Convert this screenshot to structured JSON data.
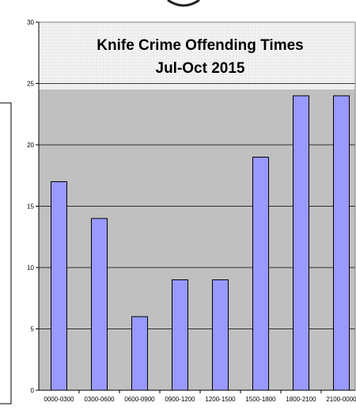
{
  "chart_data": {
    "type": "bar",
    "title": "Knife Crime Offending Times",
    "subtitle": "Jul-Oct 2015",
    "xlabel": "",
    "ylabel": "",
    "categories": [
      "0000-0300",
      "0300-0600",
      "0600-0900",
      "0900-1200",
      "1200-1500",
      "1500-1800",
      "1800-2100",
      "2100-0000"
    ],
    "values": [
      17,
      14,
      6,
      9,
      9,
      19,
      24,
      24
    ],
    "ylim": [
      0,
      30
    ],
    "yticks": [
      "0",
      "5",
      "10",
      "15",
      "20",
      "25",
      "30"
    ],
    "grid": true,
    "legend": "none",
    "colors": {
      "bar_fill": "#9999ff",
      "bar_stroke": "#000000",
      "plot_background": "#c0c0c0",
      "title_background": "#e8e8e8"
    }
  }
}
